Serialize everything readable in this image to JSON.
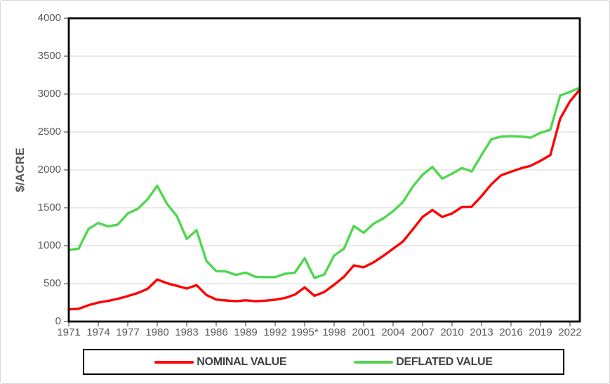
{
  "chart_data": {
    "type": "line",
    "title": "",
    "ylabel": "$/ACRE",
    "xlabel": "",
    "xlim": [
      1971,
      2023
    ],
    "ylim": [
      0,
      4000
    ],
    "grid": "horizontal-only",
    "legend_position": "bottom-center",
    "y_ticks": [
      0,
      500,
      1000,
      1500,
      2000,
      2500,
      3000,
      3500,
      4000
    ],
    "x_tick_years": [
      1971,
      1974,
      1977,
      1980,
      1983,
      1986,
      1989,
      1992,
      1995,
      1998,
      2001,
      2004,
      2007,
      2010,
      2013,
      2016,
      2019,
      2022
    ],
    "x_tick_labels": [
      "1971",
      "1974",
      "1977",
      "1980",
      "1983",
      "1986",
      "1989",
      "1992",
      "1995*",
      "1998",
      "2001",
      "2004",
      "2007",
      "2010",
      "2013",
      "2016",
      "2019",
      "2022"
    ],
    "years": [
      1971,
      1972,
      1973,
      1974,
      1975,
      1976,
      1977,
      1978,
      1979,
      1980,
      1981,
      1982,
      1983,
      1984,
      1985,
      1986,
      1987,
      1988,
      1989,
      1990,
      1991,
      1992,
      1993,
      1994,
      1995,
      1996,
      1997,
      1998,
      1999,
      2000,
      2001,
      2002,
      2003,
      2004,
      2005,
      2006,
      2007,
      2008,
      2009,
      2010,
      2011,
      2012,
      2013,
      2014,
      2015,
      2016,
      2017,
      2018,
      2019,
      2020,
      2021,
      2022,
      2023
    ],
    "series": [
      {
        "name": "NOMINAL VALUE",
        "color": "#FF0000",
        "values": [
          160,
          168,
          215,
          250,
          272,
          300,
          335,
          375,
          430,
          555,
          505,
          470,
          435,
          480,
          350,
          290,
          278,
          268,
          280,
          268,
          275,
          288,
          310,
          355,
          450,
          340,
          390,
          485,
          590,
          740,
          715,
          780,
          865,
          960,
          1055,
          1215,
          1380,
          1470,
          1380,
          1425,
          1510,
          1515,
          1655,
          1810,
          1930,
          1975,
          2020,
          2055,
          2120,
          2195,
          2675,
          2905,
          3060
        ]
      },
      {
        "name": "DEFLATED VALUE",
        "color": "#4ED84E",
        "values": [
          945,
          960,
          1220,
          1300,
          1255,
          1280,
          1425,
          1485,
          1610,
          1790,
          1550,
          1390,
          1090,
          1205,
          800,
          665,
          660,
          615,
          645,
          590,
          585,
          585,
          630,
          645,
          835,
          575,
          620,
          870,
          960,
          1260,
          1170,
          1290,
          1360,
          1455,
          1575,
          1780,
          1935,
          2040,
          1885,
          1950,
          2025,
          1980,
          2195,
          2405,
          2440,
          2445,
          2440,
          2425,
          2490,
          2530,
          2980,
          3030,
          3085
        ]
      }
    ]
  },
  "style": {
    "background": "#FFFFFF",
    "frame_border_color": "#D9D9D9",
    "axis_color": "#000000",
    "grid_color": "#D6D6D6",
    "tick_color": "#595959",
    "tick_label_color": "#595959",
    "legend_text_color": "#404040"
  }
}
